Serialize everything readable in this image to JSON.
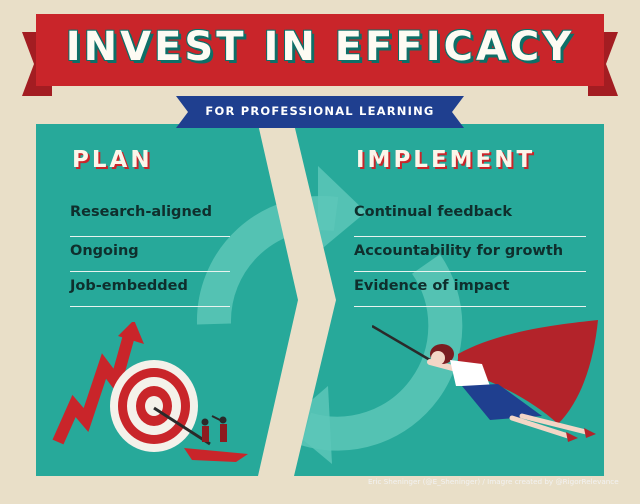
{
  "poster": {
    "title": "INVEST IN EFFICACY",
    "subtitle": "FOR PROFESSIONAL LEARNING",
    "credit": "Eric Sheninger (@E_Sheninger) / Imagre created by @RigorRelevance"
  },
  "plan": {
    "heading": "PLAN",
    "items": [
      "Research-aligned",
      "Ongoing",
      "Job-embedded"
    ]
  },
  "implement": {
    "heading": "IMPLEMENT",
    "items": [
      "Continual feedback",
      "Accountability for growth",
      "Evidence of impact"
    ]
  },
  "colors": {
    "teal": "#27a99a",
    "dark_teal": "#0e6f67",
    "red": "#c9252a",
    "navy": "#1f3f8f",
    "cream": "#e9dfc8"
  },
  "icons": [
    "cycle-arrows-icon",
    "target-icon",
    "rising-arrow-icon",
    "superhero-icon"
  ]
}
